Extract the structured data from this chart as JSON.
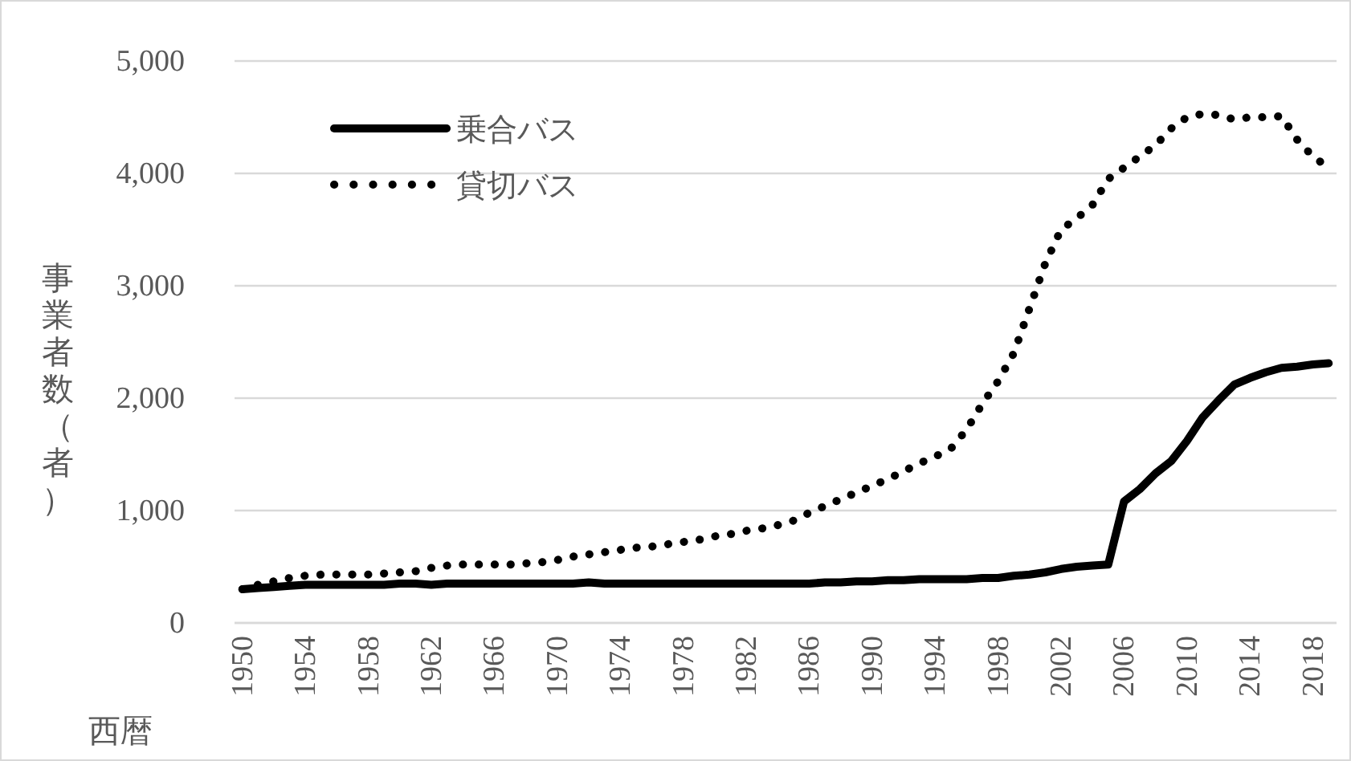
{
  "chart_data": {
    "type": "line",
    "xlabel": "西暦",
    "ylabel": "事業者数（者）",
    "categories": [
      "1950",
      null,
      null,
      null,
      "1954",
      null,
      null,
      null,
      "1958",
      null,
      null,
      null,
      "1962",
      null,
      null,
      null,
      "1966",
      null,
      null,
      null,
      "1970",
      null,
      null,
      null,
      "1974",
      null,
      null,
      null,
      "1978",
      null,
      null,
      null,
      "1982",
      null,
      null,
      null,
      "1986",
      null,
      null,
      null,
      "1990",
      null,
      null,
      null,
      "1994",
      null,
      null,
      null,
      "1998",
      null,
      null,
      null,
      "2002",
      null,
      null,
      null,
      "2006",
      null,
      null,
      null,
      "2010",
      null,
      null,
      null,
      "2014",
      null,
      null,
      null,
      "2018",
      null
    ],
    "series": [
      {
        "name": "乗合バス",
        "color": "#000000",
        "line_style": "solid",
        "values": [
          300,
          310,
          320,
          330,
          340,
          340,
          340,
          340,
          340,
          340,
          350,
          350,
          340,
          350,
          350,
          350,
          350,
          350,
          350,
          350,
          350,
          350,
          360,
          350,
          350,
          350,
          350,
          350,
          350,
          350,
          350,
          350,
          350,
          350,
          350,
          350,
          350,
          360,
          360,
          370,
          370,
          380,
          380,
          390,
          390,
          390,
          390,
          400,
          400,
          420,
          430,
          450,
          480,
          500,
          510,
          520,
          1080,
          1190,
          1330,
          1440,
          1620,
          1830,
          1980,
          2120,
          2180,
          2230,
          2270,
          2280,
          2300,
          2310
        ]
      },
      {
        "name": "貸切バス",
        "color": "#000000",
        "line_style": "dotted",
        "values": [
          300,
          340,
          370,
          400,
          420,
          430,
          430,
          430,
          430,
          440,
          450,
          460,
          490,
          510,
          520,
          520,
          520,
          520,
          530,
          540,
          560,
          590,
          610,
          630,
          650,
          670,
          680,
          700,
          720,
          740,
          770,
          790,
          820,
          840,
          870,
          910,
          980,
          1040,
          1100,
          1160,
          1220,
          1280,
          1350,
          1420,
          1480,
          1550,
          1720,
          1950,
          2150,
          2400,
          2800,
          3200,
          3500,
          3600,
          3720,
          3950,
          4050,
          4150,
          4250,
          4400,
          4500,
          4530,
          4520,
          4480,
          4500,
          4500,
          4510,
          4300,
          4150,
          4050
        ]
      }
    ],
    "ylim": [
      0,
      5000
    ],
    "yticks": [
      0,
      {
        "value": 1000,
        "label": "1,000"
      },
      {
        "value": 2000,
        "label": "2,000"
      },
      {
        "value": 3000,
        "label": "3,000"
      },
      {
        "value": 4000,
        "label": "4,000"
      },
      {
        "value": 5000,
        "label": "5,000"
      }
    ],
    "grid": "y",
    "legend": "top left",
    "marker": "none"
  }
}
